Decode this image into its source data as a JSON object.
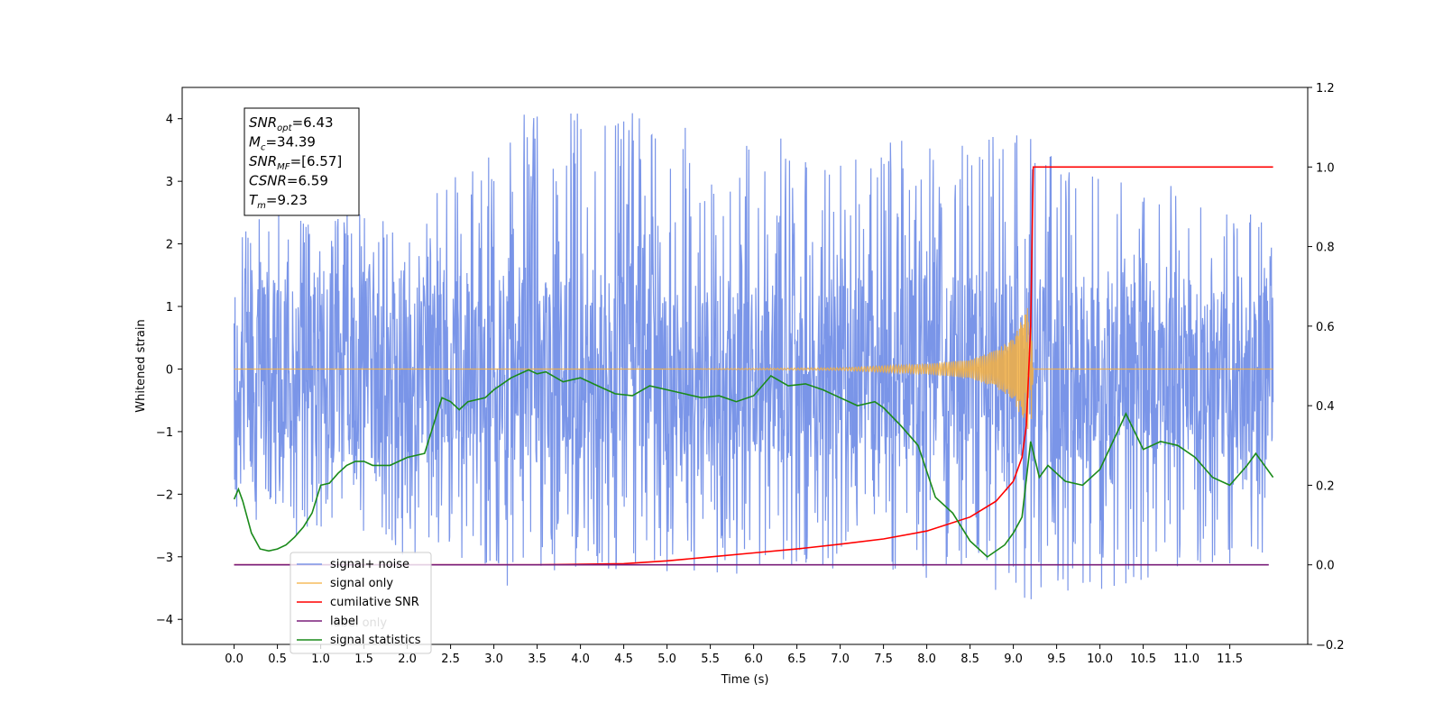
{
  "chart_data": {
    "type": "line",
    "xlabel": "Time (s)",
    "ylabel_left": "Whitened strain",
    "ylabel_right": "",
    "xlim": [
      -0.6,
      12.4
    ],
    "ylim_left": [
      -4.4,
      4.5
    ],
    "ylim_right": [
      -0.2,
      1.2
    ],
    "x_ticks": [
      "0.0",
      "0.5",
      "1.0",
      "1.5",
      "2.0",
      "2.5",
      "3.0",
      "3.5",
      "4.0",
      "4.5",
      "5.0",
      "5.5",
      "6.0",
      "6.5",
      "7.0",
      "7.5",
      "8.0",
      "8.5",
      "9.0",
      "9.5",
      "10.0",
      "10.5",
      "11.0",
      "11.5"
    ],
    "y_ticks_left": [
      "4",
      "3",
      "2",
      "1",
      "0",
      "−1",
      "−2",
      "−3",
      "−4"
    ],
    "y_ticks_right": [
      "1.2",
      "1.0",
      "0.8",
      "0.6",
      "0.4",
      "0.2",
      "0.0",
      "−0.2"
    ],
    "grid": false,
    "legend_position": "lower-left",
    "series": [
      {
        "name": "signal+ noise",
        "axis": "left",
        "color": "#6b8ae6",
        "x_range": [
          0.0,
          12.0
        ],
        "approx_upper_envelope": [
          [
            0.0,
            2.4
          ],
          [
            0.5,
            2.5
          ],
          [
            1.0,
            2.6
          ],
          [
            2.0,
            2.4
          ],
          [
            3.3,
            4.1
          ],
          [
            4.9,
            4.1
          ],
          [
            6.2,
            3.7
          ],
          [
            6.9,
            3.6
          ],
          [
            9.15,
            3.75
          ],
          [
            9.5,
            3.4
          ],
          [
            10.2,
            3.2
          ],
          [
            11.0,
            2.9
          ],
          [
            12.0,
            2.5
          ]
        ],
        "approx_lower_envelope": [
          [
            0.0,
            -2.6
          ],
          [
            0.5,
            -2.7
          ],
          [
            1.0,
            -2.8
          ],
          [
            2.6,
            -3.1
          ],
          [
            3.3,
            -3.6
          ],
          [
            4.0,
            -3.2
          ],
          [
            6.5,
            -3.3
          ],
          [
            8.4,
            -3.5
          ],
          [
            9.1,
            -3.7
          ],
          [
            9.2,
            -3.75
          ],
          [
            10.5,
            -3.4
          ],
          [
            12.0,
            -3.0
          ]
        ]
      },
      {
        "name": "signal only",
        "axis": "left",
        "color": "#f5b041",
        "chirp_merger_time": 9.23,
        "points": [
          [
            0.0,
            0.0
          ],
          [
            5.0,
            0.0
          ],
          [
            7.0,
            0.02
          ],
          [
            8.0,
            0.08
          ],
          [
            8.5,
            0.15
          ],
          [
            8.8,
            0.3
          ],
          [
            9.0,
            0.5
          ],
          [
            9.1,
            0.8
          ],
          [
            9.2,
            1.1
          ],
          [
            9.23,
            0.0
          ],
          [
            12.0,
            0.0
          ]
        ]
      },
      {
        "name": "cumilative SNR",
        "axis": "right",
        "color": "#ff0000",
        "points": [
          [
            0.0,
            0.0
          ],
          [
            3.5,
            0.0
          ],
          [
            4.5,
            0.003
          ],
          [
            5.0,
            0.01
          ],
          [
            5.5,
            0.02
          ],
          [
            6.0,
            0.03
          ],
          [
            6.5,
            0.04
          ],
          [
            7.0,
            0.052
          ],
          [
            7.5,
            0.065
          ],
          [
            8.0,
            0.085
          ],
          [
            8.5,
            0.12
          ],
          [
            8.8,
            0.16
          ],
          [
            9.0,
            0.21
          ],
          [
            9.1,
            0.27
          ],
          [
            9.15,
            0.35
          ],
          [
            9.2,
            0.6
          ],
          [
            9.23,
            1.0
          ],
          [
            12.0,
            1.0
          ]
        ]
      },
      {
        "name": "label",
        "axis": "right",
        "color": "#7a1f7a",
        "points": [
          [
            0.0,
            0.0
          ],
          [
            11.95,
            0.0
          ]
        ]
      },
      {
        "name": "signal statistics",
        "axis": "right",
        "color": "#1a8a1a",
        "points": [
          [
            0.0,
            0.165
          ],
          [
            0.05,
            0.19
          ],
          [
            0.1,
            0.16
          ],
          [
            0.2,
            0.08
          ],
          [
            0.3,
            0.04
          ],
          [
            0.4,
            0.035
          ],
          [
            0.5,
            0.04
          ],
          [
            0.6,
            0.05
          ],
          [
            0.7,
            0.07
          ],
          [
            0.8,
            0.095
          ],
          [
            0.9,
            0.13
          ],
          [
            1.0,
            0.2
          ],
          [
            1.1,
            0.205
          ],
          [
            1.2,
            0.23
          ],
          [
            1.3,
            0.25
          ],
          [
            1.4,
            0.26
          ],
          [
            1.5,
            0.26
          ],
          [
            1.6,
            0.25
          ],
          [
            1.8,
            0.25
          ],
          [
            2.0,
            0.27
          ],
          [
            2.2,
            0.28
          ],
          [
            2.4,
            0.42
          ],
          [
            2.5,
            0.41
          ],
          [
            2.6,
            0.39
          ],
          [
            2.7,
            0.41
          ],
          [
            2.9,
            0.42
          ],
          [
            3.0,
            0.44
          ],
          [
            3.2,
            0.47
          ],
          [
            3.4,
            0.49
          ],
          [
            3.5,
            0.48
          ],
          [
            3.6,
            0.485
          ],
          [
            3.8,
            0.46
          ],
          [
            4.0,
            0.47
          ],
          [
            4.2,
            0.45
          ],
          [
            4.4,
            0.43
          ],
          [
            4.6,
            0.425
          ],
          [
            4.8,
            0.45
          ],
          [
            5.0,
            0.44
          ],
          [
            5.2,
            0.43
          ],
          [
            5.4,
            0.42
          ],
          [
            5.6,
            0.425
          ],
          [
            5.8,
            0.41
          ],
          [
            6.0,
            0.425
          ],
          [
            6.2,
            0.475
          ],
          [
            6.4,
            0.45
          ],
          [
            6.6,
            0.455
          ],
          [
            6.8,
            0.44
          ],
          [
            7.0,
            0.42
          ],
          [
            7.2,
            0.4
          ],
          [
            7.4,
            0.41
          ],
          [
            7.5,
            0.395
          ],
          [
            7.7,
            0.35
          ],
          [
            7.9,
            0.3
          ],
          [
            8.1,
            0.17
          ],
          [
            8.3,
            0.13
          ],
          [
            8.5,
            0.06
          ],
          [
            8.7,
            0.02
          ],
          [
            8.9,
            0.05
          ],
          [
            9.0,
            0.08
          ],
          [
            9.1,
            0.12
          ],
          [
            9.2,
            0.31
          ],
          [
            9.3,
            0.22
          ],
          [
            9.4,
            0.25
          ],
          [
            9.6,
            0.21
          ],
          [
            9.8,
            0.2
          ],
          [
            10.0,
            0.24
          ],
          [
            10.3,
            0.38
          ],
          [
            10.5,
            0.29
          ],
          [
            10.7,
            0.31
          ],
          [
            10.9,
            0.3
          ],
          [
            11.1,
            0.27
          ],
          [
            11.3,
            0.22
          ],
          [
            11.5,
            0.2
          ],
          [
            11.7,
            0.25
          ],
          [
            11.8,
            0.28
          ],
          [
            12.0,
            0.22
          ]
        ]
      }
    ],
    "annotation_lines": [
      {
        "label_main": "SNR",
        "label_sub": "opt",
        "value": "=6.43"
      },
      {
        "label_main": "M",
        "label_sub": "c",
        "value": "=34.39"
      },
      {
        "label_main": "SNR",
        "label_sub": "MF",
        "value": "=[6.57]"
      },
      {
        "label_main": "CSNR",
        "label_sub": "",
        "value": "=6.59"
      },
      {
        "label_main": "T",
        "label_sub": "m",
        "value": "=9.23"
      }
    ],
    "legend_overlay_text": "label only"
  }
}
